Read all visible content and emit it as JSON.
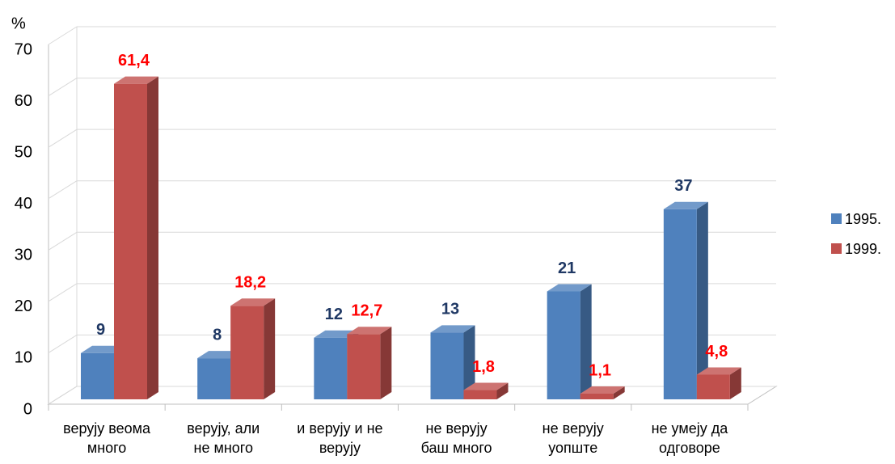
{
  "chart_data": {
    "type": "bar3d",
    "y_label": "%",
    "categories": [
      "верују веома\nмного",
      "верују, али\nне много",
      "и верују и не\nверују",
      "не верују\nбаш много",
      "не верују\nуопште",
      "не умеју да\nодговоре"
    ],
    "series": [
      {
        "name": "1995.",
        "color": "#4f81bd",
        "label_color": "#1f3864",
        "values": [
          9,
          8,
          12,
          13,
          21,
          37
        ]
      },
      {
        "name": "1999.",
        "color": "#c0504d",
        "label_color": "#ff0000",
        "values": [
          61.4,
          18.2,
          12.7,
          1.8,
          1.1,
          4.8
        ],
        "value_labels": [
          "61,4",
          "18,2",
          "12,7",
          "1,8",
          "1,1",
          "4,8"
        ]
      }
    ],
    "ylim": [
      0,
      70
    ],
    "yticks": [
      0,
      10,
      20,
      30,
      40,
      50,
      60,
      70
    ],
    "grid": true,
    "legend": "right"
  }
}
